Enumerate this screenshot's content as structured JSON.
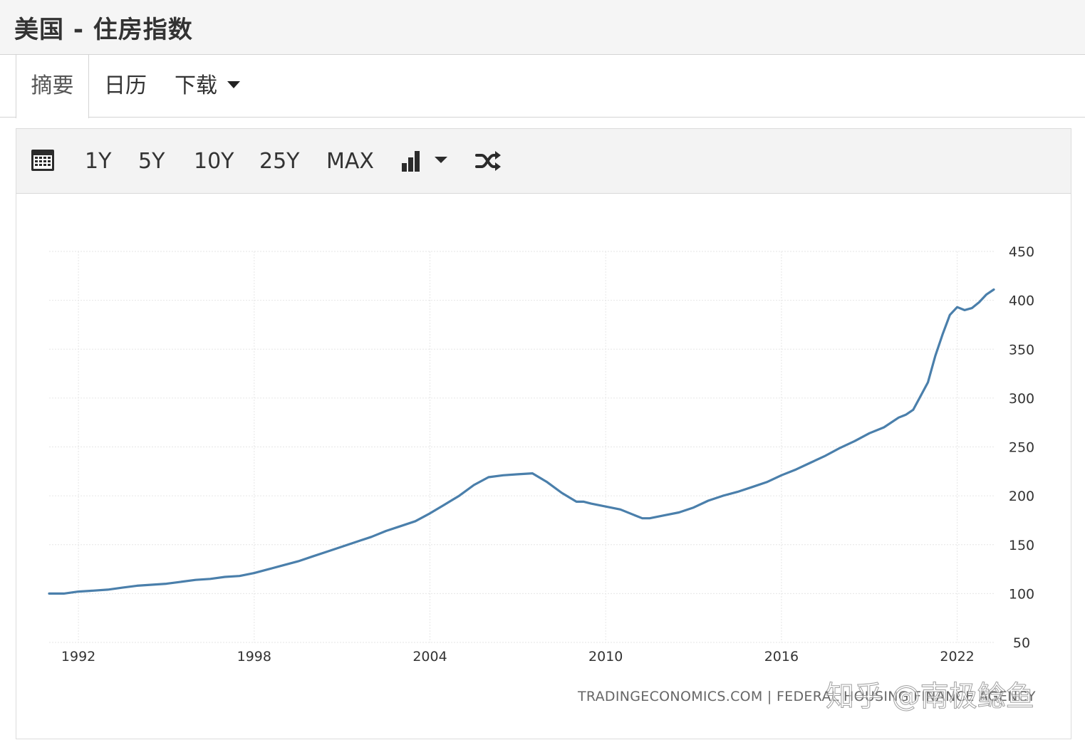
{
  "header": {
    "title": "美国 - 住房指数"
  },
  "tabs": [
    {
      "label": "摘要",
      "active": true
    },
    {
      "label": "日历",
      "active": false
    },
    {
      "label": "下载",
      "active": false,
      "has_dropdown": true
    }
  ],
  "toolbar": {
    "calendar_icon": "calendar-icon",
    "ranges": [
      "1Y",
      "5Y",
      "10Y",
      "25Y",
      "MAX"
    ],
    "chart_type_icon": "bar-chart-icon",
    "compare_icon": "shuffle-icon"
  },
  "chart_data": {
    "type": "line",
    "title": "",
    "xlabel": "",
    "ylabel": "",
    "x_range": [
      1991.0,
      2023.25
    ],
    "ylim": [
      50,
      450
    ],
    "y_ticks": [
      50,
      100,
      150,
      200,
      250,
      300,
      350,
      400,
      450
    ],
    "x_ticks": [
      1992,
      1998,
      2004,
      2010,
      2016,
      2022
    ],
    "y_axis_side": "right",
    "grid": true,
    "legend": "none",
    "line_color": "#4a7fab",
    "series": [
      {
        "x": [
          1991.0,
          1991.5,
          1992.0,
          1992.5,
          1993.0,
          1993.5,
          1994.0,
          1994.5,
          1995.0,
          1995.5,
          1996.0,
          1996.5,
          1997.0,
          1997.5,
          1998.0,
          1998.5,
          1999.0,
          1999.5,
          2000.0,
          2000.5,
          2001.0,
          2001.5,
          2002.0,
          2002.5,
          2003.0,
          2003.5,
          2004.0,
          2004.5,
          2005.0,
          2005.5,
          2006.0,
          2006.5,
          2007.0,
          2007.5,
          2008.0,
          2008.5,
          2009.0,
          2009.25,
          2009.5,
          2010.0,
          2010.5,
          2011.0,
          2011.25,
          2011.5,
          2012.0,
          2012.5,
          2013.0,
          2013.5,
          2014.0,
          2014.5,
          2015.0,
          2015.5,
          2016.0,
          2016.5,
          2017.0,
          2017.5,
          2018.0,
          2018.5,
          2019.0,
          2019.5,
          2020.0,
          2020.25,
          2020.5,
          2020.75,
          2021.0,
          2021.25,
          2021.5,
          2021.75,
          2022.0,
          2022.25,
          2022.5,
          2022.75,
          2023.0,
          2023.25
        ],
        "y": [
          100,
          100,
          102,
          103,
          104,
          106,
          108,
          109,
          110,
          112,
          114,
          115,
          117,
          118,
          121,
          125,
          129,
          133,
          138,
          143,
          148,
          153,
          158,
          164,
          169,
          174,
          182,
          191,
          200,
          211,
          219,
          221,
          222,
          223,
          214,
          203,
          194,
          194,
          192,
          189,
          186,
          180,
          177,
          177,
          180,
          183,
          188,
          195,
          200,
          204,
          209,
          214,
          221,
          227,
          234,
          241,
          249,
          256,
          264,
          270,
          280,
          283,
          288,
          302,
          316,
          343,
          365,
          385,
          393,
          390,
          392,
          398,
          406,
          411
        ]
      }
    ],
    "credit": "TRADINGECONOMICS.COM  |  FEDERAL HOUSING FINANCE AGENCY",
    "watermark": "知乎 @南极鲶鱼"
  }
}
